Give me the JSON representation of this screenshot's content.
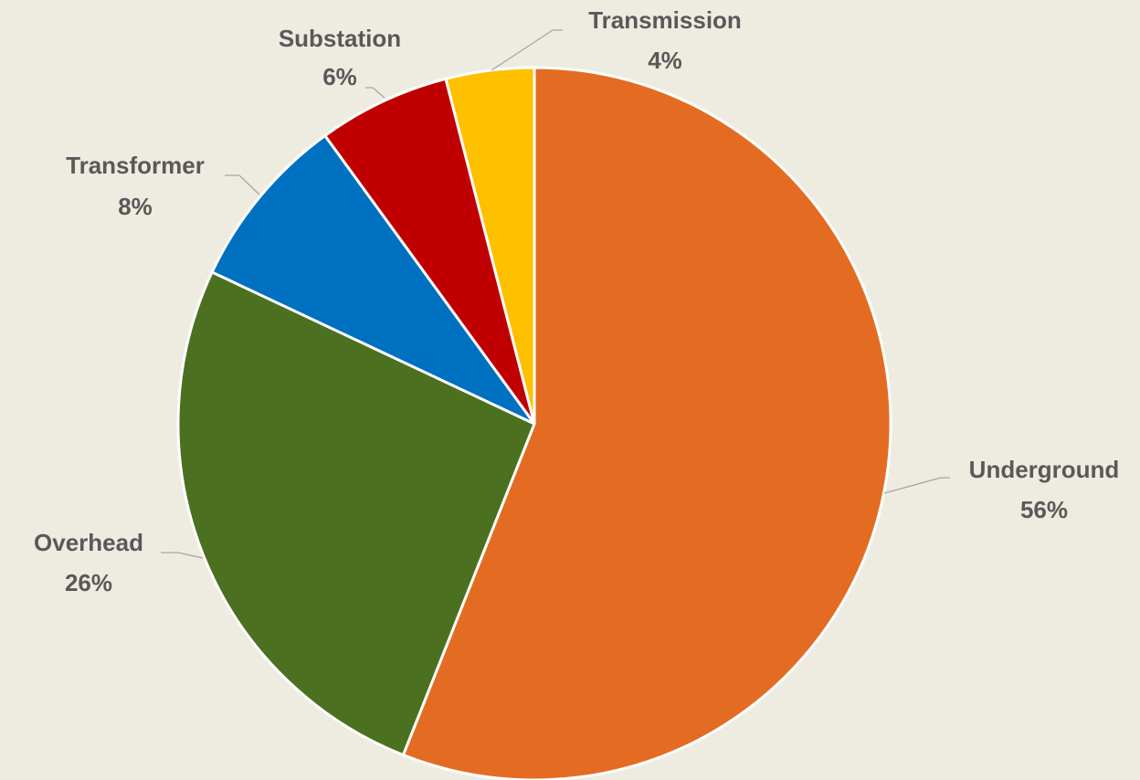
{
  "chart_data": {
    "type": "pie",
    "categories": [
      "Underground",
      "Overhead",
      "Transformer",
      "Substation",
      "Transmission"
    ],
    "values": [
      56,
      26,
      8,
      6,
      4
    ],
    "value_labels": [
      "56%",
      "26%",
      "8%",
      "6%",
      "4%"
    ],
    "colors": [
      "#e46c22",
      "#4b7120",
      "#0070c0",
      "#c00000",
      "#ffc000"
    ]
  }
}
